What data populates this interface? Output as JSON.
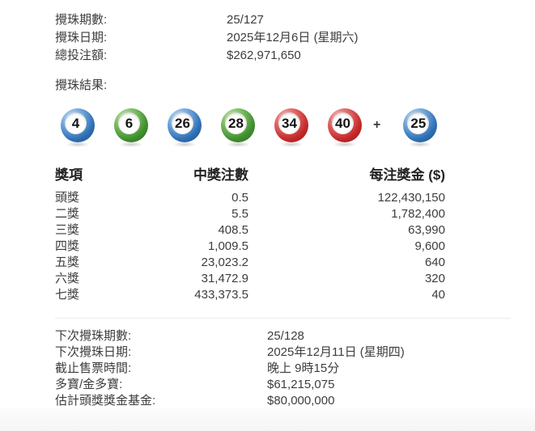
{
  "info_top": [
    {
      "label": "攪珠期數:",
      "value": "25/127"
    },
    {
      "label": "攪珠日期:",
      "value": "2025年12月6日 (星期六)"
    },
    {
      "label": "總投注額:",
      "value": "$262,971,650"
    }
  ],
  "result_label": "攪珠結果:",
  "balls": [
    {
      "number": "4",
      "color": "blue"
    },
    {
      "number": "6",
      "color": "green"
    },
    {
      "number": "26",
      "color": "blue"
    },
    {
      "number": "28",
      "color": "green"
    },
    {
      "number": "34",
      "color": "red"
    },
    {
      "number": "40",
      "color": "red"
    }
  ],
  "plus_sign": "+",
  "extra_ball": {
    "number": "25",
    "color": "blue"
  },
  "prize_table": {
    "headers": [
      "獎項",
      "中獎注數",
      "每注獎金 ($)"
    ],
    "rows": [
      [
        "頭獎",
        "0.5",
        "122,430,150"
      ],
      [
        "二獎",
        "5.5",
        "1,782,400"
      ],
      [
        "三獎",
        "408.5",
        "63,990"
      ],
      [
        "四獎",
        "1,009.5",
        "9,600"
      ],
      [
        "五獎",
        "23,023.2",
        "640"
      ],
      [
        "六獎",
        "31,472.9",
        "320"
      ],
      [
        "七獎",
        "433,373.5",
        "40"
      ]
    ]
  },
  "info_bottom": [
    {
      "label": "下次攪珠期數:",
      "value": "25/128"
    },
    {
      "label": "下次攪珠日期:",
      "value": "2025年12月11日 (星期四)"
    },
    {
      "label": "截止售票時間:",
      "value": "晚上 9時15分"
    },
    {
      "label": "多寶/金多寶:",
      "value": "$61,215,075"
    },
    {
      "label": "估計頭獎獎金基金:",
      "value": "$80,000,000"
    }
  ],
  "colors": {
    "ball_blue": "#2f6fb5",
    "ball_green": "#3f8f2f",
    "ball_red": "#c62828",
    "text": "#3d3d3d",
    "table_header_text": "#222222"
  }
}
